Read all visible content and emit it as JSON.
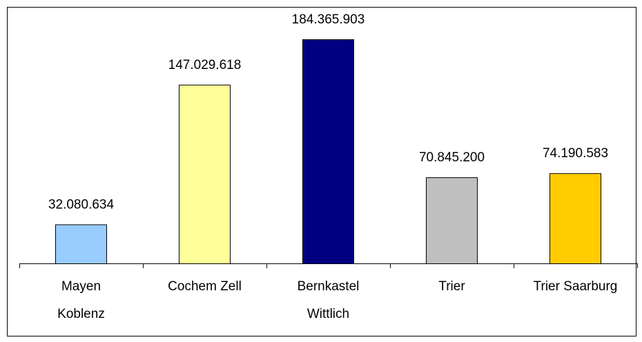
{
  "chart_data": {
    "type": "bar",
    "categories": [
      "Mayen\nKoblenz",
      "Cochem Zell",
      "Bernkastel\nWittlich",
      "Trier",
      "Trier Saarburg"
    ],
    "values": [
      32080634,
      147029618,
      184365903,
      70845200,
      74190583
    ],
    "value_labels": [
      "32.080.634",
      "147.029.618",
      "184.365.903",
      "70.845.200",
      "74.190.583"
    ],
    "colors": [
      "#99ccff",
      "#ffff99",
      "#000080",
      "#c0c0c0",
      "#ffcc00"
    ]
  }
}
